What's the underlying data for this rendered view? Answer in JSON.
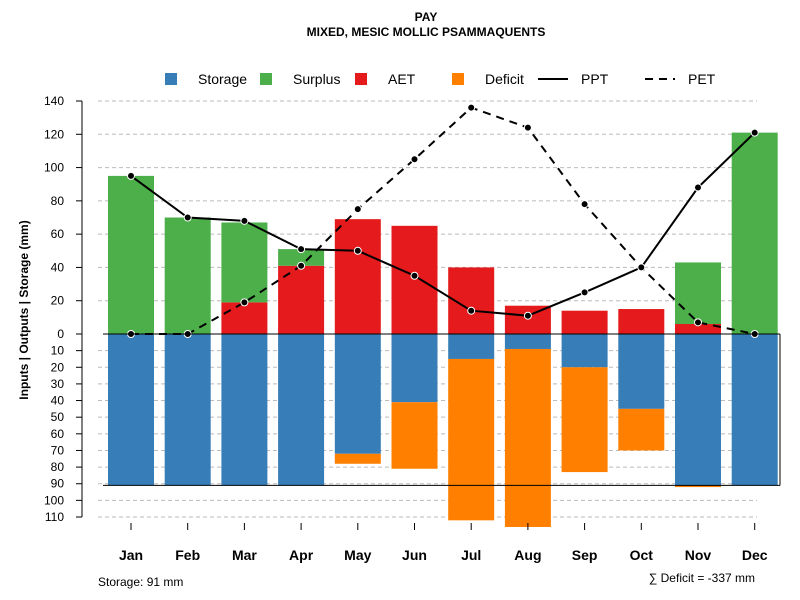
{
  "chart_data": {
    "type": "bar",
    "title": "PAY",
    "subtitle": "MIXED, MESIC MOLLIC PSAMMAQUENTS",
    "ylabel": "Inputs | Outputs | Storage    (mm)",
    "categories": [
      "Jan",
      "Feb",
      "Mar",
      "Apr",
      "May",
      "Jun",
      "Jul",
      "Aug",
      "Sep",
      "Oct",
      "Nov",
      "Dec"
    ],
    "upper_ylim": [
      0,
      140
    ],
    "upper_ticks": [
      "0",
      "20",
      "40",
      "60",
      "80",
      "100",
      "120",
      "140"
    ],
    "lower_ylim": [
      0,
      110
    ],
    "lower_ticks": [
      "0",
      "10",
      "20",
      "30",
      "40",
      "50",
      "60",
      "70",
      "80",
      "90",
      "100",
      "110"
    ],
    "legend": [
      {
        "label": "Storage",
        "kind": "box",
        "color": "#377eb8"
      },
      {
        "label": "Surplus",
        "kind": "box",
        "color": "#4daf4a"
      },
      {
        "label": "AET",
        "kind": "box",
        "color": "#e41a1c"
      },
      {
        "label": "Deficit",
        "kind": "box",
        "color": "#ff7f00"
      },
      {
        "label": "PPT",
        "kind": "solid",
        "color": "#000000"
      },
      {
        "label": "PET",
        "kind": "dashed",
        "color": "#000000"
      }
    ],
    "series": [
      {
        "name": "AET",
        "values": [
          0,
          0,
          19,
          41,
          69,
          65,
          40,
          17,
          14,
          15,
          6,
          0
        ]
      },
      {
        "name": "Surplus",
        "values": [
          95,
          70,
          48,
          10,
          0,
          0,
          0,
          0,
          0,
          0,
          37,
          121
        ]
      },
      {
        "name": "Storage",
        "values": [
          91,
          91,
          91,
          91,
          72,
          41,
          15,
          9,
          20,
          45,
          91,
          91
        ]
      },
      {
        "name": "Deficit",
        "values": [
          0,
          0,
          0,
          0,
          6,
          40,
          97,
          107,
          63,
          25,
          1,
          0
        ]
      },
      {
        "name": "PPT",
        "values": [
          95,
          70,
          68,
          51,
          50,
          35,
          14,
          11,
          25,
          40,
          88,
          121
        ]
      },
      {
        "name": "PET",
        "values": [
          0,
          0,
          19,
          41,
          75,
          105,
          136,
          124,
          78,
          40,
          7,
          0
        ]
      }
    ],
    "storage_capacity": 91,
    "footer_left": "Storage: 91 mm",
    "footer_right": "∑ Deficit = -337 mm",
    "colors": {
      "storage": "#377eb8",
      "surplus": "#4daf4a",
      "aet": "#e41a1c",
      "deficit": "#ff7f00",
      "grid": "#bbbbbb"
    }
  }
}
